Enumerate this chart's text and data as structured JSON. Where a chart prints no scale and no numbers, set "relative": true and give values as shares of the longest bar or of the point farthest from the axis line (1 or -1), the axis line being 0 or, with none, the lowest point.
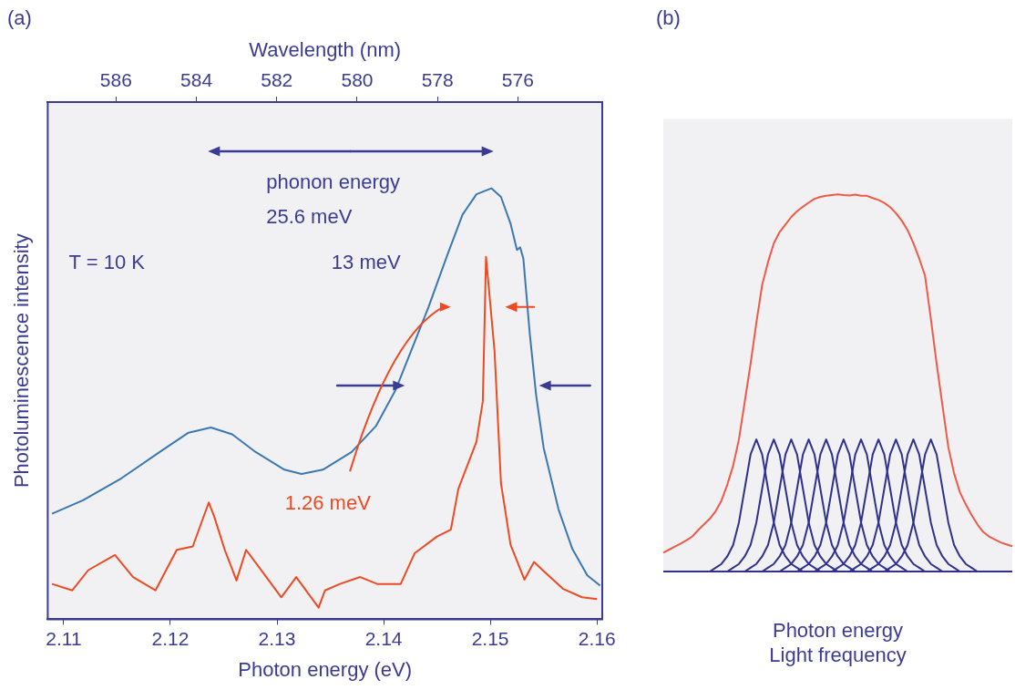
{
  "chart_data": [
    {
      "type": "line",
      "title": "(a)",
      "xlabel": "Photon energy (eV)",
      "ylabel": "Photoluminescence intensity",
      "x2label": "Wavelength (nm)",
      "relative": true,
      "xlim": [
        2.1085,
        2.1605
      ],
      "xticks": [
        2.11,
        2.12,
        2.13,
        2.14,
        2.15,
        2.16
      ],
      "x2lim": [
        587.7,
        573.9
      ],
      "x2ticks": [
        586,
        584,
        582,
        580,
        578,
        576
      ],
      "series": [
        {
          "color": "#3a78b4",
          "x": [
            2.1089,
            2.1118,
            2.1154,
            2.119,
            2.1217,
            2.1238,
            2.1258,
            2.128,
            2.1307,
            2.1323,
            2.1343,
            2.137,
            2.1393,
            2.1411,
            2.1424,
            2.1442,
            2.146,
            2.1474,
            2.1487,
            2.1501,
            2.151,
            2.1519,
            2.1525,
            2.1528,
            2.1531,
            2.1537,
            2.1543,
            2.155,
            2.1564,
            2.1577,
            2.1591,
            2.1603
          ],
          "values": [
            0.245,
            0.276,
            0.327,
            0.388,
            0.433,
            0.445,
            0.429,
            0.388,
            0.347,
            0.337,
            0.347,
            0.388,
            0.449,
            0.531,
            0.612,
            0.724,
            0.847,
            0.939,
            0.986,
            1,
            0.98,
            0.918,
            0.857,
            0.863,
            0.837,
            0.663,
            0.52,
            0.398,
            0.255,
            0.163,
            0.102,
            0.078
          ]
        },
        {
          "color": "#ee4a22",
          "x": [
            2.1089,
            2.1108,
            2.1123,
            2.1148,
            2.1165,
            2.1186,
            2.1206,
            2.1221,
            2.1236,
            2.1241,
            2.1251,
            2.1262,
            2.1271,
            2.129,
            2.1304,
            2.1318,
            2.1339,
            2.1345,
            2.1359,
            2.1378,
            2.1394,
            2.1416,
            2.1429,
            2.145,
            2.1463,
            2.147,
            2.1487,
            2.1493,
            2.1496,
            2.1504,
            2.151,
            2.1519,
            2.1532,
            2.1541,
            2.155,
            2.1568,
            2.1586,
            2.16
          ],
          "values": [
            0.082,
            0.067,
            0.114,
            0.149,
            0.098,
            0.067,
            0.161,
            0.169,
            0.271,
            0.239,
            0.161,
            0.09,
            0.161,
            0.098,
            0.051,
            0.098,
            0.027,
            0.067,
            0.082,
            0.098,
            0.082,
            0.082,
            0.153,
            0.192,
            0.208,
            0.302,
            0.412,
            0.506,
            0.841,
            0.622,
            0.316,
            0.173,
            0.092,
            0.133,
            0.112,
            0.071,
            0.051,
            0.047
          ]
        }
      ],
      "annotations": [
        "T = 10 K",
        "phonon energy\n25.6 meV",
        "13 meV",
        "1.26 meV"
      ]
    },
    {
      "type": "line",
      "title": "(b)",
      "xlabel": "Photon energy\nLight frequency",
      "relative": true,
      "categories": [
        null,
        null,
        null,
        null,
        null,
        null,
        null,
        null,
        null,
        null,
        null,
        null,
        null,
        null,
        null,
        null,
        null,
        null,
        null,
        null,
        null,
        null,
        null,
        null,
        null,
        null,
        null,
        null,
        null,
        null,
        null,
        null,
        null,
        null,
        null,
        null,
        null,
        null,
        null,
        null,
        null,
        null,
        null,
        null,
        null,
        null,
        null,
        null,
        null,
        null,
        null,
        null,
        null,
        null,
        null,
        null,
        null,
        null,
        null,
        null,
        null
      ],
      "series": [
        {
          "color": "#ef5a48",
          "values": [
            0.05,
            0.058,
            0.066,
            0.074,
            0.083,
            0.093,
            0.11,
            0.125,
            0.14,
            0.16,
            0.188,
            0.23,
            0.28,
            0.35,
            0.45,
            0.55,
            0.66,
            0.76,
            0.82,
            0.87,
            0.9,
            0.92,
            0.94,
            0.955,
            0.967,
            0.978,
            0.988,
            0.993,
            0.996,
            0.998,
            1,
            0.998,
            0.997,
            0.999,
            0.996,
            0.996,
            0.99,
            0.985,
            0.977,
            0.966,
            0.95,
            0.93,
            0.905,
            0.87,
            0.83,
            0.784,
            0.67,
            0.55,
            0.44,
            0.33,
            0.26,
            0.21,
            0.178,
            0.15,
            0.125,
            0.105,
            0.093,
            0.085,
            0.077,
            0.072,
            0.067
          ]
        },
        {
          "color": "#30308e",
          "values": [
            0,
            0,
            0,
            0,
            0,
            0,
            0,
            0,
            0,
            0.01,
            0.02,
            0.04,
            0.07,
            0.13,
            0.22,
            0.31,
            0.35,
            0.31,
            0.22,
            0.13,
            0.07,
            0.04,
            0.02,
            0.01,
            0,
            0,
            0,
            0,
            0,
            0,
            0,
            0,
            0,
            0,
            0,
            0,
            0,
            0,
            0,
            0,
            0,
            0,
            0,
            0,
            0,
            0,
            0,
            0,
            0,
            0,
            0,
            0,
            0,
            0,
            0,
            0,
            0,
            0,
            0,
            0,
            0
          ]
        },
        {
          "color": "#30308e",
          "values": [
            0,
            0,
            0,
            0,
            0,
            0,
            0,
            0,
            0,
            0,
            0,
            0,
            0.01,
            0.02,
            0.04,
            0.07,
            0.13,
            0.22,
            0.31,
            0.35,
            0.31,
            0.22,
            0.13,
            0.07,
            0.04,
            0.02,
            0.01,
            0,
            0,
            0,
            0,
            0,
            0,
            0,
            0,
            0,
            0,
            0,
            0,
            0,
            0,
            0,
            0,
            0,
            0,
            0,
            0,
            0,
            0,
            0,
            0,
            0,
            0,
            0,
            0,
            0,
            0,
            0,
            0,
            0,
            0
          ]
        },
        {
          "color": "#30308e",
          "values": [
            0,
            0,
            0,
            0,
            0,
            0,
            0,
            0,
            0,
            0,
            0,
            0,
            0,
            0,
            0,
            0.01,
            0.02,
            0.04,
            0.07,
            0.13,
            0.22,
            0.31,
            0.35,
            0.31,
            0.22,
            0.13,
            0.07,
            0.04,
            0.02,
            0.01,
            0,
            0,
            0,
            0,
            0,
            0,
            0,
            0,
            0,
            0,
            0,
            0,
            0,
            0,
            0,
            0,
            0,
            0,
            0,
            0,
            0,
            0,
            0,
            0,
            0,
            0,
            0,
            0,
            0,
            0,
            0
          ]
        },
        {
          "color": "#30308e",
          "values": [
            0,
            0,
            0,
            0,
            0,
            0,
            0,
            0,
            0,
            0,
            0,
            0,
            0,
            0,
            0,
            0,
            0,
            0,
            0.01,
            0.02,
            0.04,
            0.07,
            0.13,
            0.22,
            0.31,
            0.35,
            0.31,
            0.22,
            0.13,
            0.07,
            0.04,
            0.02,
            0.01,
            0,
            0,
            0,
            0,
            0,
            0,
            0,
            0,
            0,
            0,
            0,
            0,
            0,
            0,
            0,
            0,
            0,
            0,
            0,
            0,
            0,
            0,
            0,
            0,
            0,
            0,
            0,
            0
          ]
        },
        {
          "color": "#30308e",
          "values": [
            0,
            0,
            0,
            0,
            0,
            0,
            0,
            0,
            0,
            0,
            0,
            0,
            0,
            0,
            0,
            0,
            0,
            0,
            0,
            0,
            0,
            0.01,
            0.02,
            0.04,
            0.07,
            0.13,
            0.22,
            0.31,
            0.35,
            0.31,
            0.22,
            0.13,
            0.07,
            0.04,
            0.02,
            0.01,
            0,
            0,
            0,
            0,
            0,
            0,
            0,
            0,
            0,
            0,
            0,
            0,
            0,
            0,
            0,
            0,
            0,
            0,
            0,
            0,
            0,
            0,
            0,
            0,
            0
          ]
        },
        {
          "color": "#30308e",
          "values": [
            0,
            0,
            0,
            0,
            0,
            0,
            0,
            0,
            0,
            0,
            0,
            0,
            0,
            0,
            0,
            0,
            0,
            0,
            0,
            0,
            0,
            0,
            0,
            0,
            0.01,
            0.02,
            0.04,
            0.07,
            0.13,
            0.22,
            0.31,
            0.35,
            0.31,
            0.22,
            0.13,
            0.07,
            0.04,
            0.02,
            0.01,
            0,
            0,
            0,
            0,
            0,
            0,
            0,
            0,
            0,
            0,
            0,
            0,
            0,
            0,
            0,
            0,
            0,
            0,
            0,
            0,
            0,
            0
          ]
        },
        {
          "color": "#30308e",
          "values": [
            0,
            0,
            0,
            0,
            0,
            0,
            0,
            0,
            0,
            0,
            0,
            0,
            0,
            0,
            0,
            0,
            0,
            0,
            0,
            0,
            0,
            0,
            0,
            0,
            0,
            0,
            0,
            0.01,
            0.02,
            0.04,
            0.07,
            0.13,
            0.22,
            0.31,
            0.35,
            0.31,
            0.22,
            0.13,
            0.07,
            0.04,
            0.02,
            0.01,
            0,
            0,
            0,
            0,
            0,
            0,
            0,
            0,
            0,
            0,
            0,
            0,
            0,
            0,
            0,
            0,
            0,
            0,
            0
          ]
        },
        {
          "color": "#30308e",
          "values": [
            0,
            0,
            0,
            0,
            0,
            0,
            0,
            0,
            0,
            0,
            0,
            0,
            0,
            0,
            0,
            0,
            0,
            0,
            0,
            0,
            0,
            0,
            0,
            0,
            0,
            0,
            0,
            0,
            0,
            0,
            0.01,
            0.02,
            0.04,
            0.07,
            0.13,
            0.22,
            0.31,
            0.35,
            0.31,
            0.22,
            0.13,
            0.07,
            0.04,
            0.02,
            0.01,
            0,
            0,
            0,
            0,
            0,
            0,
            0,
            0,
            0,
            0,
            0,
            0,
            0,
            0,
            0,
            0
          ]
        },
        {
          "color": "#30308e",
          "values": [
            0,
            0,
            0,
            0,
            0,
            0,
            0,
            0,
            0,
            0,
            0,
            0,
            0,
            0,
            0,
            0,
            0,
            0,
            0,
            0,
            0,
            0,
            0,
            0,
            0,
            0,
            0,
            0,
            0,
            0,
            0,
            0,
            0,
            0.01,
            0.02,
            0.04,
            0.07,
            0.13,
            0.22,
            0.31,
            0.35,
            0.31,
            0.22,
            0.13,
            0.07,
            0.04,
            0.02,
            0.01,
            0,
            0,
            0,
            0,
            0,
            0,
            0,
            0,
            0,
            0,
            0,
            0,
            0
          ]
        },
        {
          "color": "#30308e",
          "values": [
            0,
            0,
            0,
            0,
            0,
            0,
            0,
            0,
            0,
            0,
            0,
            0,
            0,
            0,
            0,
            0,
            0,
            0,
            0,
            0,
            0,
            0,
            0,
            0,
            0,
            0,
            0,
            0,
            0,
            0,
            0,
            0,
            0,
            0,
            0,
            0,
            0.01,
            0.02,
            0.04,
            0.07,
            0.13,
            0.22,
            0.31,
            0.35,
            0.31,
            0.22,
            0.13,
            0.07,
            0.04,
            0.02,
            0.01,
            0,
            0,
            0,
            0,
            0,
            0,
            0,
            0,
            0,
            0
          ]
        },
        {
          "color": "#30308e",
          "values": [
            0,
            0,
            0,
            0,
            0,
            0,
            0,
            0,
            0,
            0,
            0,
            0,
            0,
            0,
            0,
            0,
            0,
            0,
            0,
            0,
            0,
            0,
            0,
            0,
            0,
            0,
            0,
            0,
            0,
            0,
            0,
            0,
            0,
            0,
            0,
            0,
            0,
            0,
            0,
            0.01,
            0.02,
            0.04,
            0.07,
            0.13,
            0.22,
            0.31,
            0.35,
            0.31,
            0.22,
            0.13,
            0.07,
            0.04,
            0.02,
            0.01,
            0,
            0,
            0,
            0,
            0,
            0,
            0
          ]
        }
      ]
    }
  ]
}
